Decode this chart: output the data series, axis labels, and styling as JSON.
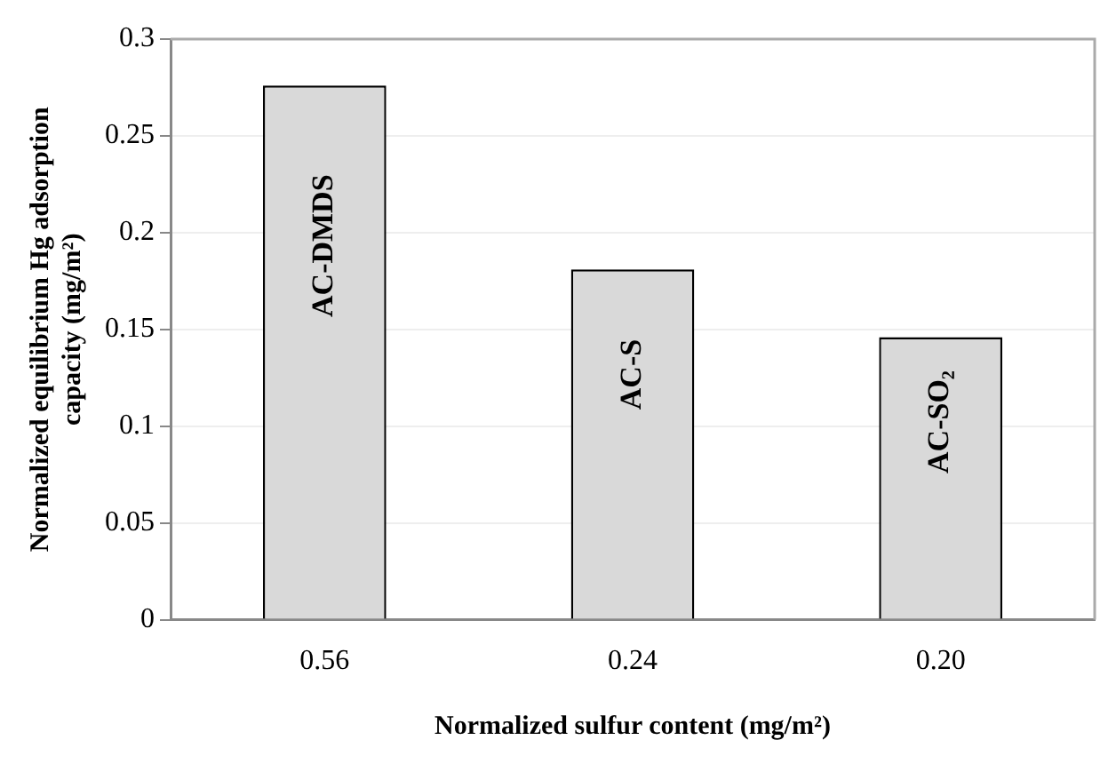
{
  "chart_data": {
    "type": "bar",
    "xlabel": "Normalized sulfur content (mg/m²)",
    "ylabel": "Normalized equilibrium Hg adsorption capacity (mg/m²)",
    "categories": [
      "0.56",
      "0.24",
      "0.20"
    ],
    "values": [
      0.276,
      0.181,
      0.146
    ],
    "color": "#d9d9d9",
    "ylim": [
      0,
      0.3
    ],
    "yticks": [
      0,
      0.05,
      0.1,
      0.15,
      0.2,
      0.25,
      0.3
    ],
    "grid": "y",
    "annotations": [
      "AC-DMDS",
      "AC-S",
      "AC-SO₂"
    ]
  }
}
